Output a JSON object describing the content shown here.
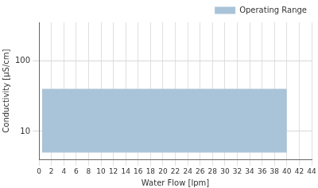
{
  "chart_data": {
    "type": "area",
    "x_label": "Water Flow [lpm]",
    "y_label": "Conductivity [µS/cm]",
    "x": [
      0.5,
      40
    ],
    "series": [
      {
        "name": "Operating Range",
        "color": "#a9c4d8",
        "values": [
          40,
          40
        ],
        "lower": [
          5,
          5
        ]
      }
    ],
    "xlim": [
      0,
      44
    ],
    "xticks": [
      0,
      2,
      4,
      6,
      8,
      10,
      12,
      14,
      16,
      18,
      20,
      22,
      24,
      26,
      28,
      30,
      32,
      34,
      36,
      38,
      40,
      42,
      44
    ],
    "ylim": [
      4,
      350
    ],
    "yticks": [
      10,
      100
    ],
    "log": "y",
    "grid": true,
    "legend": "top-right"
  }
}
